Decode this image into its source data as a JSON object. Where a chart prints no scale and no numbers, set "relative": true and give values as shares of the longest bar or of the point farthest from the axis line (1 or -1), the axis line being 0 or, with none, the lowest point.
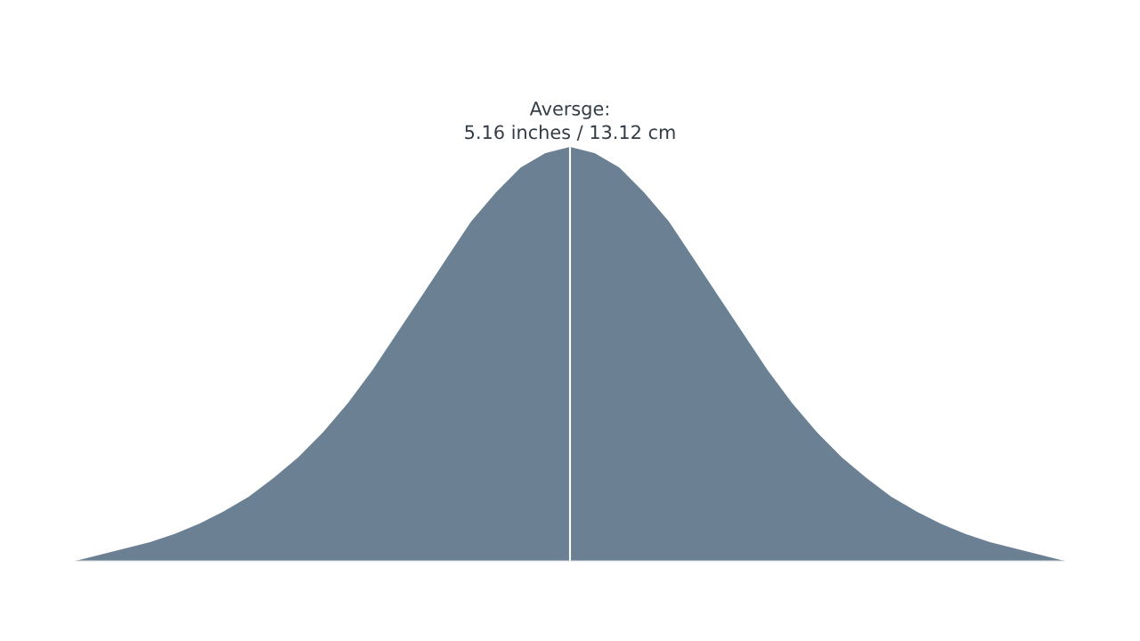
{
  "chart_data": {
    "type": "area",
    "relative": true,
    "categories": [
      null,
      null,
      null,
      null,
      null,
      null,
      null,
      null,
      null,
      null,
      null,
      null,
      null,
      null,
      null,
      null,
      null,
      null,
      null,
      null,
      null,
      null,
      null,
      null,
      null,
      null,
      null,
      null,
      null,
      null,
      null,
      null,
      null,
      null,
      null,
      null,
      null,
      null,
      null,
      null,
      null
    ],
    "series": [
      {
        "color": "#6b8193",
        "values": [
          0,
          0.015,
          0.03,
          0.045,
          0.065,
          0.09,
          0.12,
          0.155,
          0.2,
          0.25,
          0.31,
          0.38,
          0.46,
          0.55,
          0.64,
          0.73,
          0.82,
          0.89,
          0.95,
          0.985,
          1,
          0.985,
          0.95,
          0.89,
          0.82,
          0.73,
          0.64,
          0.55,
          0.46,
          0.38,
          0.31,
          0.25,
          0.2,
          0.155,
          0.12,
          0.09,
          0.065,
          0.045,
          0.03,
          0.015,
          0
        ]
      }
    ],
    "annotations": [
      "Aversge:\n5.16 inches / 13.12 cm"
    ]
  }
}
